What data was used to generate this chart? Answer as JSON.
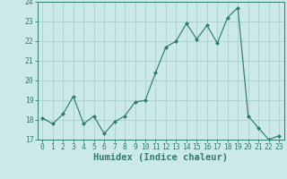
{
  "x": [
    0,
    1,
    2,
    3,
    4,
    5,
    6,
    7,
    8,
    9,
    10,
    11,
    12,
    13,
    14,
    15,
    16,
    17,
    18,
    19,
    20,
    21,
    22,
    23
  ],
  "y": [
    18.1,
    17.8,
    18.3,
    19.2,
    17.8,
    18.2,
    17.3,
    17.9,
    18.2,
    18.9,
    19.0,
    20.4,
    21.7,
    22.0,
    22.9,
    22.1,
    22.8,
    21.9,
    23.2,
    23.7,
    18.2,
    17.6,
    17.0,
    17.2
  ],
  "line_color": "#2e7d6e",
  "marker": "D",
  "marker_size": 2.0,
  "bg_color": "#cce9e9",
  "grid_color": "#aacece",
  "xlabel": "Humidex (Indice chaleur)",
  "xlim": [
    -0.5,
    23.5
  ],
  "ylim": [
    17.0,
    24.0
  ],
  "yticks": [
    17,
    18,
    19,
    20,
    21,
    22,
    23,
    24
  ],
  "xticks": [
    0,
    1,
    2,
    3,
    4,
    5,
    6,
    7,
    8,
    9,
    10,
    11,
    12,
    13,
    14,
    15,
    16,
    17,
    18,
    19,
    20,
    21,
    22,
    23
  ],
  "tick_color": "#2e7d6e",
  "label_color": "#2e7d6e",
  "spine_color": "#2e7d6e",
  "tick_fontsize": 5.8,
  "xlabel_fontsize": 7.5
}
